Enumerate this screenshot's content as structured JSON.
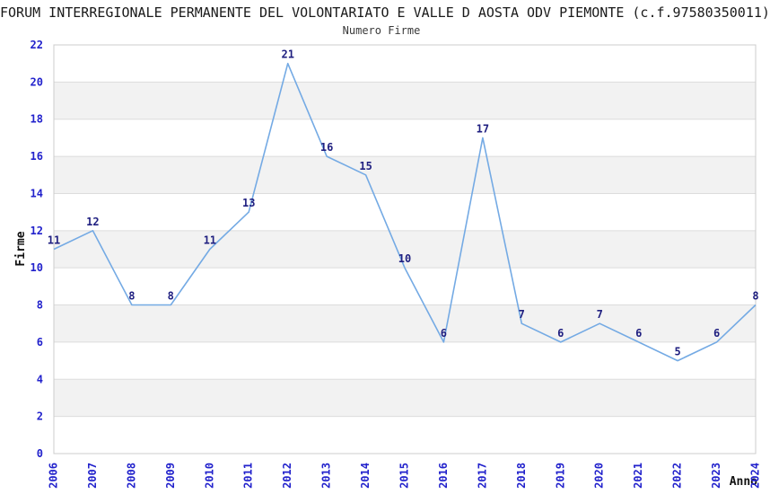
{
  "header": {
    "title": "FORUM INTERREGIONALE PERMANENTE DEL VOLONTARIATO E VALLE D AOSTA ODV PIEMONTE (c.f.97580350011)",
    "subtitle": "Numero Firme"
  },
  "axes": {
    "y_label": "Firme",
    "x_label": "Anno"
  },
  "chart_data": {
    "type": "line",
    "title": "FORUM INTERREGIONALE PERMANENTE DEL VOLONTARIATO E VALLE D AOSTA ODV PIEMONTE (c.f.97580350011)",
    "subtitle": "Numero Firme",
    "xlabel": "Anno",
    "ylabel": "Firme",
    "categories": [
      "2006",
      "2007",
      "2008",
      "2009",
      "2010",
      "2011",
      "2012",
      "2013",
      "2014",
      "2015",
      "2016",
      "2017",
      "2018",
      "2019",
      "2020",
      "2021",
      "2022",
      "2023",
      "2024"
    ],
    "values": [
      11,
      12,
      8,
      8,
      11,
      13,
      21,
      16,
      15,
      10,
      6,
      17,
      7,
      6,
      7,
      6,
      5,
      6,
      8
    ],
    "ylim": [
      0,
      22
    ],
    "y_tick_step": 2,
    "grid": true,
    "legend": "none",
    "data_labels_visible": true,
    "colors": {
      "line": "#74aae4",
      "tick_label": "#2222cc",
      "data_label": "#1f1f80",
      "band_fill": "#f2f2f2",
      "gridline": "#dcdcdc",
      "plot_border": "#cccccc",
      "title_text": "#1a1a1a"
    }
  }
}
